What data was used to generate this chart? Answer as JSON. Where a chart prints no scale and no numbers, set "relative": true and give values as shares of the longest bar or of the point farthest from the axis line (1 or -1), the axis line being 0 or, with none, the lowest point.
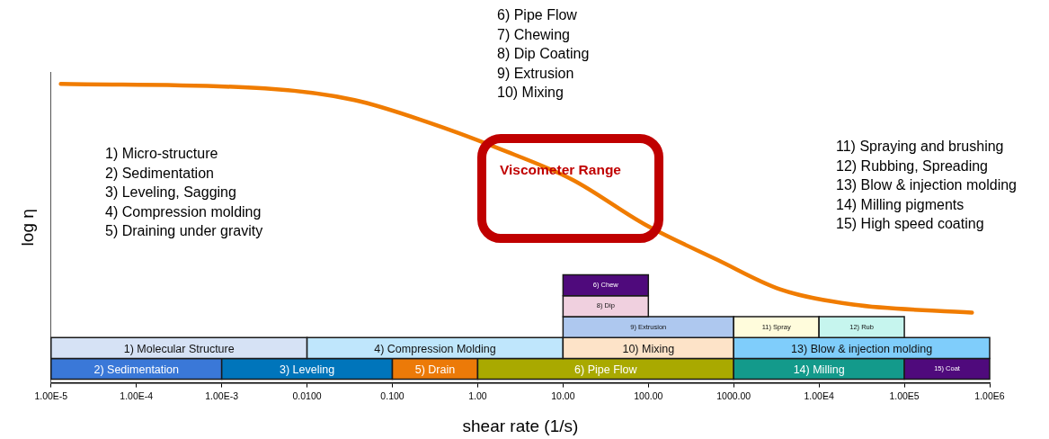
{
  "chart_data": {
    "type": "line",
    "relative": true,
    "xlabel": "shear rate (1/s)",
    "ylabel": "log η",
    "log": "x",
    "legend": false,
    "grid": false,
    "marker": "none",
    "xlim": [
      1e-05,
      1000000
    ],
    "xticks": [
      {
        "value": 1e-05,
        "label": "1.00E-5"
      },
      {
        "value": 0.0001,
        "label": "1.00E-4"
      },
      {
        "value": 0.001,
        "label": "1.00E-3"
      },
      {
        "value": 0.01,
        "label": "0.0100"
      },
      {
        "value": 0.1,
        "label": "0.100"
      },
      {
        "value": 1,
        "label": "1.00"
      },
      {
        "value": 10,
        "label": "10.00"
      },
      {
        "value": 100,
        "label": "100.00"
      },
      {
        "value": 1000,
        "label": "1000.00"
      },
      {
        "value": 10000,
        "label": "1.00E4"
      },
      {
        "value": 100000,
        "label": "1.00E5"
      },
      {
        "value": 1000000,
        "label": "1.00E6"
      }
    ],
    "x": [
      1.3e-05,
      0.0032,
      0.036,
      0.26,
      1.8,
      13,
      91,
      650,
      3500,
      25000,
      620000
    ],
    "series": [
      {
        "color": "#f07c00",
        "values": [
          1,
          0.985,
          0.946,
          0.872,
          0.783,
          0.679,
          0.53,
          0.411,
          0.313,
          0.262,
          0.235
        ]
      }
    ],
    "bands": [
      {
        "axis": "x",
        "from": 1e-05,
        "to": 0.001,
        "label": "2) Sedimentation",
        "color": "#3a78d8"
      },
      {
        "axis": "x",
        "from": 0.001,
        "to": 0.1,
        "label": "3) Leveling",
        "color": "#0075bb"
      },
      {
        "axis": "x",
        "from": 0.1,
        "to": 1,
        "label": "5) Drain",
        "color": "#ec7a08"
      },
      {
        "axis": "x",
        "from": 1,
        "to": 1000,
        "label": "6) Pipe Flow",
        "color": "#a9a900"
      },
      {
        "axis": "x",
        "from": 1000,
        "to": 100000,
        "label": "14) Milling",
        "color": "#139a8b"
      },
      {
        "axis": "x",
        "from": 100000,
        "to": 1000000,
        "label": "15) Coat",
        "color": "#4f0a7c"
      },
      {
        "axis": "x",
        "from": 1e-05,
        "to": 0.01,
        "label": "1) Molecular Structure",
        "color": "#d6e2f5"
      },
      {
        "axis": "x",
        "from": 0.01,
        "to": 10,
        "label": "4) Compression Molding",
        "color": "#bfe6fc"
      },
      {
        "axis": "x",
        "from": 10,
        "to": 1000,
        "label": "10) Mixing",
        "color": "#fde3c8"
      },
      {
        "axis": "x",
        "from": 1000,
        "to": 1000000,
        "label": "13) Blow & injection molding",
        "color": "#7fcdfb"
      },
      {
        "axis": "x",
        "from": 10,
        "to": 1000,
        "label": "9) Extrusion",
        "color": "#aec8ef"
      },
      {
        "axis": "x",
        "from": 1000,
        "to": 10000,
        "label": "11) Spray",
        "color": "#fffcdc"
      },
      {
        "axis": "x",
        "from": 10000,
        "to": 100000,
        "label": "12) Rub",
        "color": "#c6f5ee"
      },
      {
        "axis": "x",
        "from": 10,
        "to": 100,
        "label": "8) Dip",
        "color": "#f0d0df"
      },
      {
        "axis": "x",
        "from": 10,
        "to": 100,
        "label": "6) Chew",
        "color": "#4f0a7c"
      }
    ],
    "annotations": [
      "1) Micro-structure\n2) Sedimentation\n3) Leveling, Sagging\n4) Compression molding\n5) Draining under gravity",
      "6) Pipe Flow\n7) Chewing\n8) Dip Coating\n9) Extrusion\n10) Mixing",
      "11) Spraying and brushing\n12) Rubbing, Spreading\n13) Blow & injection molding\n14) Milling pigments\n15) High speed coating",
      "Viscometer Range"
    ]
  }
}
